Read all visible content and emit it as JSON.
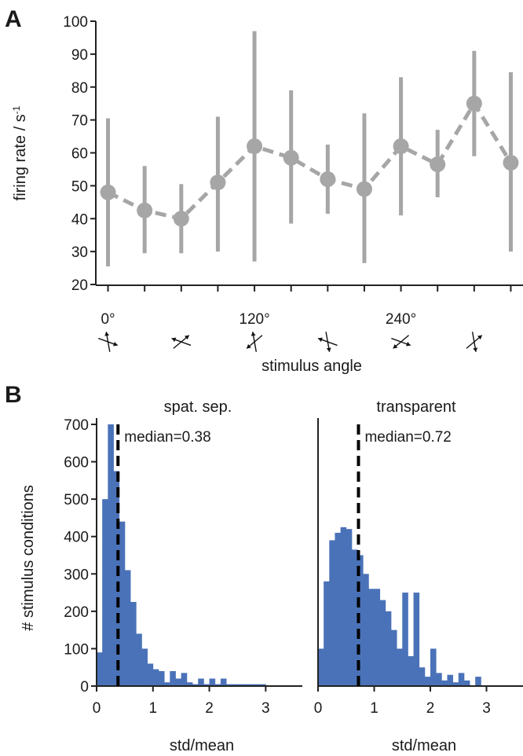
{
  "panel_labels": [
    "A",
    "B"
  ],
  "chart_data": [
    {
      "type": "line",
      "panel": "A",
      "xlabel": "stimulus angle",
      "ylabel": "firing rate / s-1",
      "ylabel_main": "firing rate / s",
      "ylabel_sup": "-1",
      "ylim": [
        20,
        100
      ],
      "yticks": [
        20,
        30,
        40,
        50,
        60,
        70,
        80,
        90,
        100
      ],
      "x": [
        0,
        30,
        60,
        90,
        120,
        150,
        180,
        210,
        240,
        270,
        300,
        330
      ],
      "x_tick_labels": [
        {
          "x": 0,
          "label": "0°"
        },
        {
          "x": 120,
          "label": "120°"
        },
        {
          "x": 240,
          "label": "240°"
        }
      ],
      "xlim": [
        -10,
        340
      ],
      "series": [
        {
          "mean": [
            48,
            42.5,
            40,
            51,
            62,
            58.5,
            52,
            49,
            62,
            56.5,
            75,
            57
          ],
          "lower": [
            25.5,
            29.5,
            29.5,
            30,
            27,
            38.5,
            41.5,
            26.5,
            41,
            46.5,
            59,
            30
          ],
          "upper": [
            70.5,
            56,
            50.5,
            71,
            97,
            79,
            62.5,
            72,
            83,
            67,
            91,
            84.5
          ],
          "color": "#a6a6a6"
        }
      ],
      "stimulus_icons": [
        {
          "x": 0,
          "name": "stimulus-icon-0"
        },
        {
          "x": 60,
          "name": "stimulus-icon-60"
        },
        {
          "x": 120,
          "name": "stimulus-icon-120"
        },
        {
          "x": 180,
          "name": "stimulus-icon-180"
        },
        {
          "x": 240,
          "name": "stimulus-icon-240"
        },
        {
          "x": 300,
          "name": "stimulus-icon-300"
        }
      ]
    },
    {
      "type": "bar",
      "panel": "B",
      "title": "spat. sep.",
      "xlabel": "std/mean",
      "ylabel": "# stimulus conditions",
      "xlim": [
        0,
        3.65
      ],
      "ylim": [
        0,
        700
      ],
      "xticks": [
        0,
        1,
        2,
        3
      ],
      "yticks": [
        0,
        100,
        200,
        300,
        400,
        500,
        600,
        700
      ],
      "bin_width": 0.1,
      "bin_starts": [
        0,
        0.1,
        0.2,
        0.3,
        0.4,
        0.5,
        0.6,
        0.7,
        0.8,
        0.9,
        1.0,
        1.1,
        1.2,
        1.3,
        1.4,
        1.5,
        1.6,
        1.7,
        1.8,
        1.9,
        2.0,
        2.1,
        2.2,
        2.3,
        2.4,
        2.5,
        2.6,
        2.7,
        2.8,
        2.9,
        3.0,
        3.1,
        3.2,
        3.3,
        3.4
      ],
      "values": [
        90,
        500,
        700,
        575,
        440,
        310,
        225,
        140,
        100,
        60,
        45,
        40,
        10,
        40,
        20,
        35,
        10,
        5,
        20,
        5,
        20,
        5,
        20,
        5,
        5,
        5,
        5,
        5,
        5,
        5,
        0,
        0,
        0,
        0,
        0
      ],
      "median": 0.38,
      "median_label": "median=0.38",
      "color": "#4a72b8"
    },
    {
      "type": "bar",
      "panel": "B",
      "title": "transparent",
      "xlabel": "std/mean",
      "xlim": [
        0,
        3.65
      ],
      "ylim": [
        0,
        700
      ],
      "xticks": [
        0,
        1,
        2,
        3
      ],
      "bin_width": 0.1,
      "bin_starts": [
        0,
        0.1,
        0.2,
        0.3,
        0.4,
        0.5,
        0.6,
        0.7,
        0.8,
        0.9,
        1.0,
        1.1,
        1.2,
        1.3,
        1.4,
        1.5,
        1.6,
        1.7,
        1.8,
        1.9,
        2.0,
        2.1,
        2.2,
        2.3,
        2.4,
        2.5,
        2.6,
        2.7,
        2.8,
        2.9,
        3.0,
        3.1,
        3.2,
        3.3,
        3.4
      ],
      "values": [
        100,
        280,
        390,
        410,
        425,
        420,
        365,
        350,
        300,
        260,
        260,
        230,
        200,
        150,
        100,
        250,
        80,
        250,
        50,
        25,
        100,
        35,
        15,
        30,
        10,
        35,
        15,
        0,
        25,
        0,
        0,
        0,
        0,
        0,
        0
      ],
      "median": 0.72,
      "median_label": "median=0.72",
      "color": "#4a72b8"
    }
  ]
}
